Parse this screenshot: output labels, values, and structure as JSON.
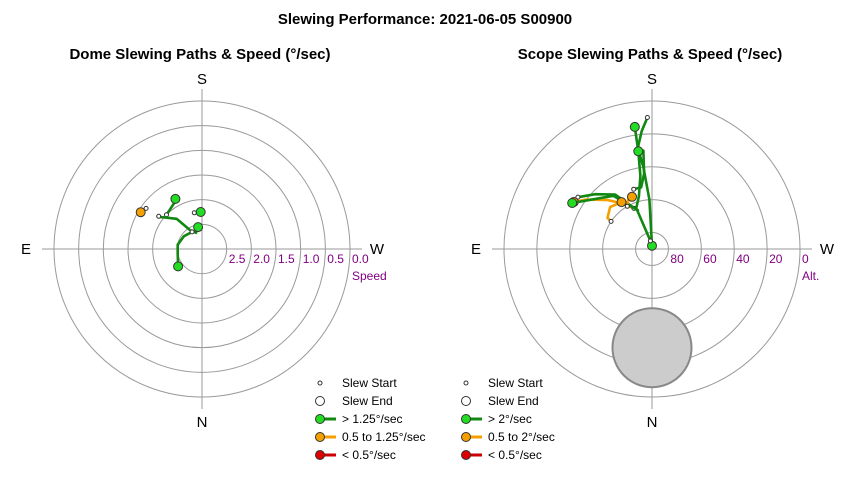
{
  "title": "Slewing Performance: 2021-06-05 S00900",
  "colors": {
    "fast_line": "#118811",
    "fast_fill": "#22dd22",
    "mid_line": "#f5a000",
    "mid_fill": "#f5a000",
    "slow_line": "#cc0000",
    "slow_fill": "#dd0000",
    "grid": "#9a9a9a",
    "tick_text": "#800080",
    "obstruction_fill": "#cccccc",
    "obstruction_stroke": "#888888"
  },
  "chart_data": [
    {
      "type": "polar",
      "title": "Dome Slewing Paths & Speed (°/sec)",
      "directions": {
        "top": "S",
        "bottom": "N",
        "left": "E",
        "right": "W"
      },
      "radial_scale": "speed",
      "radial_label": "Speed",
      "radial_max": 3.0,
      "radial_ticks": [
        2.5,
        2.0,
        1.5,
        1.0,
        0.5,
        0.0
      ],
      "radial_tick_labels": [
        "2.5",
        "2.0",
        "1.5",
        "1.0",
        "0.5",
        "0.0"
      ],
      "legend": [
        {
          "marker": "start",
          "label": "Slew Start"
        },
        {
          "marker": "end",
          "label": "Slew End"
        },
        {
          "marker": "fast",
          "label": "> 1.25°/sec"
        },
        {
          "marker": "mid",
          "label": "0.5 to 1.25°/sec"
        },
        {
          "marker": "slow",
          "label": "< 0.5°/sec"
        }
      ],
      "slews": [
        {
          "class": "mid",
          "points": [
            [
              -59,
              1.55
            ],
            [
              -54,
              1.6
            ]
          ]
        },
        {
          "class": "fast",
          "points": [
            [
              -2,
              2.25
            ],
            [
              -4,
              2.25
            ],
            [
              -12,
              2.25
            ]
          ]
        },
        {
          "class": "fast",
          "points": [
            [
              -28,
              1.85
            ],
            [
              -30,
              1.9
            ],
            [
              -46,
              2.0
            ]
          ]
        },
        {
          "class": "fast",
          "points": [
            [
              -10,
              2.55
            ],
            [
              -18,
              2.6
            ],
            [
              -20,
              2.65
            ],
            [
              -32,
              2.55
            ],
            [
              -40,
              2.2
            ],
            [
              -52,
              1.95
            ],
            [
              -53,
              1.9
            ]
          ]
        },
        {
          "class": "fast",
          "points": [
            [
              -126,
              2.4
            ],
            [
              -100,
              2.5
            ],
            [
              -80,
              2.5
            ],
            [
              -55,
              2.55
            ],
            [
              -30,
              2.6
            ]
          ]
        }
      ]
    },
    {
      "type": "polar",
      "title": "Scope Slewing Paths & Speed (°/sec)",
      "directions": {
        "top": "S",
        "bottom": "N",
        "left": "E",
        "right": "W"
      },
      "radial_scale": "altitude",
      "radial_label": "Alt.",
      "radial_min_alt": 0,
      "radial_max_alt": 90,
      "radial_ticks": [
        80,
        60,
        40,
        20,
        0
      ],
      "radial_tick_labels": [
        "80",
        "60",
        "40",
        "20",
        "0"
      ],
      "obstruction": {
        "az": 180,
        "alt": 30,
        "radius_deg": 24
      },
      "legend": [
        {
          "marker": "start",
          "label": "Slew Start"
        },
        {
          "marker": "end",
          "label": "Slew End"
        },
        {
          "marker": "fast",
          "label": "> 2°/sec"
        },
        {
          "marker": "mid",
          "label": "0.5 to 2°/sec"
        },
        {
          "marker": "slow",
          "label": "< 0.5°/sec"
        }
      ],
      "slews": [
        {
          "class": "fast",
          "points": [
            [
              -0.3,
              88
            ],
            [
              -3,
              60
            ],
            [
              -6,
              40
            ],
            [
              -8,
              28
            ],
            [
              -5,
              18
            ],
            [
              -2,
              10
            ]
          ]
        },
        {
          "class": "fast",
          "points": [
            [
              -8,
              15
            ],
            [
              -8,
              30
            ],
            [
              -9,
              45
            ],
            [
              -14,
              57
            ],
            [
              -22,
              64
            ],
            [
              -34,
              50
            ],
            [
              -46,
              42
            ],
            [
              -54,
              36
            ],
            [
              -55,
              35
            ]
          ]
        },
        {
          "class": "mid",
          "points": [
            [
              -59,
              34.5
            ],
            [
              -53,
              40
            ],
            [
              -42,
              50
            ],
            [
              -33,
              57
            ],
            [
              -24,
              63
            ]
          ]
        },
        {
          "class": "fast",
          "points": [
            [
              -60,
              34
            ],
            [
              -36,
              50
            ],
            [
              -20,
              65
            ],
            [
              -21,
              64
            ],
            [
              -11,
              85
            ]
          ]
        },
        {
          "class": "mid",
          "points": [
            [
              -21,
              56
            ],
            [
              -25,
              56
            ],
            [
              -30,
              60
            ],
            [
              -30,
              60
            ]
          ]
        },
        {
          "class": "mid",
          "points": [
            [
              -33,
              56
            ],
            [
              -45,
              54
            ],
            [
              -55,
              57
            ],
            [
              -56,
              60
            ],
            [
              -56,
              60
            ]
          ]
        },
        {
          "class": "fast",
          "points": [
            [
              -8,
              30
            ],
            [
              -5,
              30
            ],
            [
              -6,
              44
            ],
            [
              -10,
              52
            ],
            [
              -14,
              52
            ],
            [
              -17,
              52
            ]
          ]
        }
      ]
    }
  ]
}
